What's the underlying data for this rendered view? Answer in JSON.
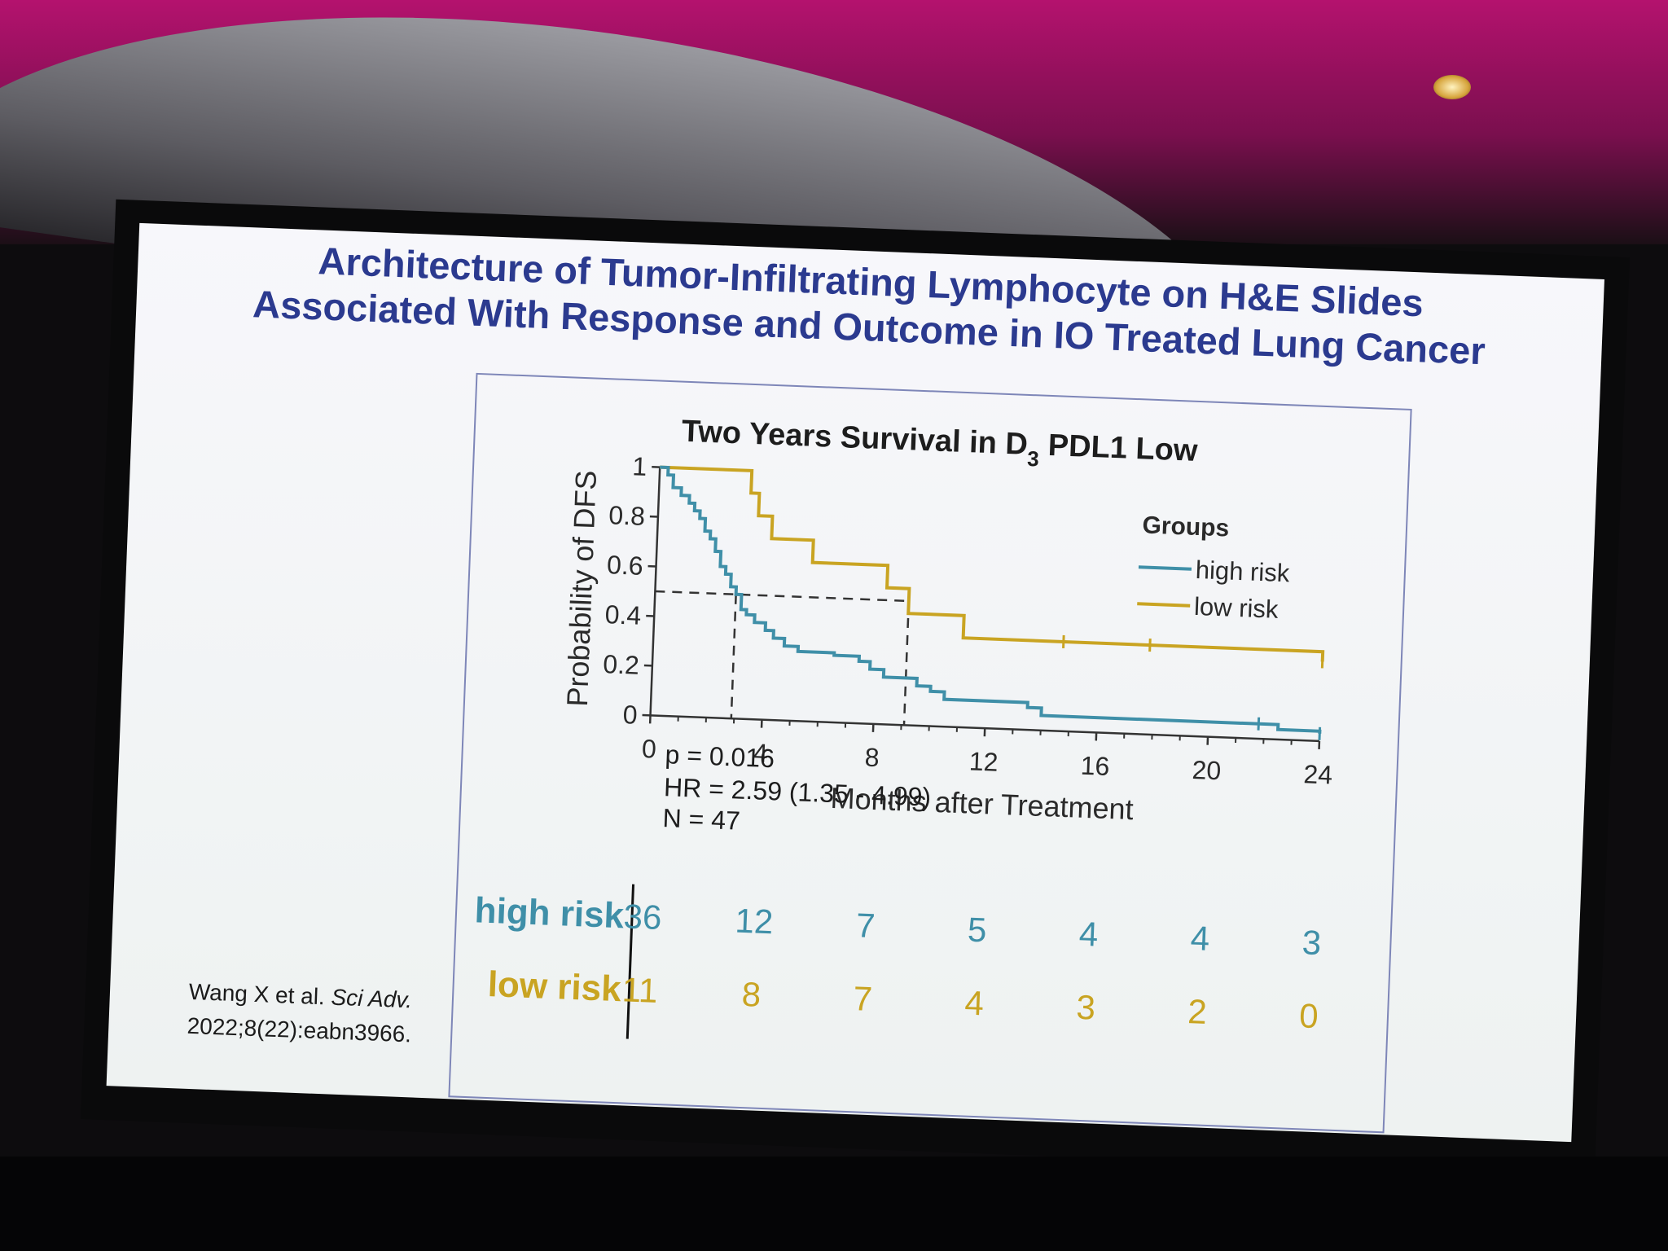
{
  "slide": {
    "title_line1": "Architecture of Tumor-Infiltrating Lymphocyte on H&E Slides",
    "title_line2": "Associated With Response and Outcome in IO Treated Lung Cancer",
    "citation": {
      "authors": "Wang X et al.",
      "journal": "Sci Adv.",
      "ref": "2022;8(22):eabn3966."
    }
  },
  "chart_data": {
    "type": "line",
    "subtype": "kaplan-meier step",
    "title_main": "Two Years Survival in D",
    "title_sub": "3",
    "title_rest": " PDL1 Low",
    "xlabel": "Months after Treatment",
    "ylabel": "Probability of DFS",
    "xlim": [
      0,
      24
    ],
    "ylim": [
      0,
      1
    ],
    "xticks": [
      0,
      4,
      8,
      12,
      16,
      20,
      24
    ],
    "yticks": [
      0,
      0.2,
      0.4,
      0.6,
      0.8,
      1
    ],
    "ytick_labels": [
      "0",
      "0.2",
      "0.4",
      "0.6",
      "0.8",
      "1"
    ],
    "legend": {
      "title": "Groups",
      "position": "top-right"
    },
    "series": [
      {
        "name": "high risk",
        "color": "#3f8fa8",
        "steps": [
          [
            0,
            1.0
          ],
          [
            0.3,
            0.97
          ],
          [
            0.5,
            0.92
          ],
          [
            0.8,
            0.89
          ],
          [
            1.1,
            0.86
          ],
          [
            1.3,
            0.83
          ],
          [
            1.5,
            0.8
          ],
          [
            1.7,
            0.75
          ],
          [
            1.9,
            0.72
          ],
          [
            2.1,
            0.67
          ],
          [
            2.3,
            0.61
          ],
          [
            2.5,
            0.58
          ],
          [
            2.7,
            0.53
          ],
          [
            2.9,
            0.5
          ],
          [
            3.1,
            0.44
          ],
          [
            3.3,
            0.42
          ],
          [
            3.6,
            0.39
          ],
          [
            4.0,
            0.36
          ],
          [
            4.3,
            0.33
          ],
          [
            4.7,
            0.3
          ],
          [
            5.2,
            0.28
          ],
          [
            6.5,
            0.27
          ],
          [
            7.4,
            0.25
          ],
          [
            7.8,
            0.22
          ],
          [
            8.3,
            0.19
          ],
          [
            9.5,
            0.16
          ],
          [
            10.0,
            0.14
          ],
          [
            10.5,
            0.11
          ],
          [
            13.5,
            0.09
          ],
          [
            14.0,
            0.06
          ],
          [
            22.5,
            0.04
          ],
          [
            24.0,
            0.03
          ]
        ],
        "censor_x": [
          21.8,
          24.0
        ]
      },
      {
        "name": "low risk",
        "color": "#c9a422",
        "steps": [
          [
            0,
            1.0
          ],
          [
            3.3,
            0.91
          ],
          [
            3.6,
            0.82
          ],
          [
            4.1,
            0.73
          ],
          [
            5.6,
            0.64
          ],
          [
            8.3,
            0.55
          ],
          [
            9.1,
            0.45
          ],
          [
            11.1,
            0.36
          ],
          [
            24.0,
            0.32
          ]
        ],
        "censor_x": [
          14.7,
          17.8,
          24.0
        ]
      }
    ],
    "median_reference": {
      "y": 0.5,
      "x_high": 2.9,
      "x_low": 9.1
    },
    "annotations": {
      "p": "p = 0.016",
      "hr": "HR = 2.59 (1.35 - 4.99)",
      "n": "N = 47"
    },
    "risk_table": {
      "times": [
        0,
        4,
        8,
        12,
        16,
        20,
        24
      ],
      "rows": [
        {
          "label": "high risk",
          "color": "#3f8fa8",
          "values": [
            36,
            12,
            7,
            5,
            4,
            4,
            3
          ]
        },
        {
          "label": "low risk",
          "color": "#c9a422",
          "values": [
            11,
            8,
            7,
            4,
            3,
            2,
            0
          ]
        }
      ]
    }
  }
}
